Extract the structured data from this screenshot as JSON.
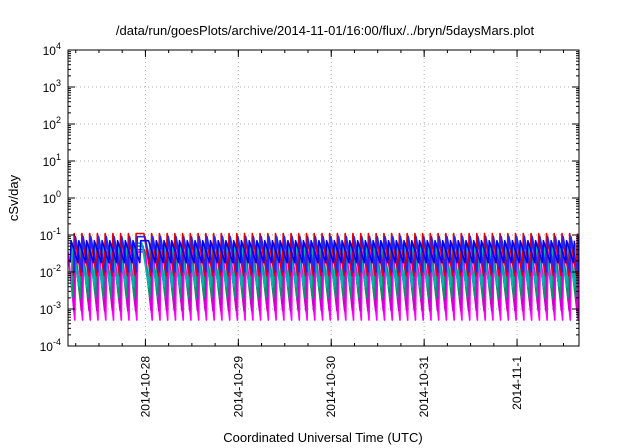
{
  "chart_data": {
    "type": "line",
    "title": "/data/run/goesPlots/archive/2014-11-01/16:00/flux/../bryn/5daysMars.plot",
    "xlabel": "Coordinated Universal Time (UTC)",
    "ylabel": "cSv/day",
    "yscale": "log",
    "ylim": [
      0.0001,
      10000
    ],
    "xlim": [
      "2014-10-27 04:00",
      "2014-11-01 16:00"
    ],
    "grid": true,
    "y_ticks": [
      {
        "base": "10",
        "exp": "-4",
        "value": 0.0001
      },
      {
        "base": "10",
        "exp": "-3",
        "value": 0.001
      },
      {
        "base": "10",
        "exp": "-2",
        "value": 0.01
      },
      {
        "base": "10",
        "exp": "-1",
        "value": 0.1
      },
      {
        "base": "10",
        "exp": "0",
        "value": 1
      },
      {
        "base": "10",
        "exp": "1",
        "value": 10
      },
      {
        "base": "10",
        "exp": "2",
        "value": 100
      },
      {
        "base": "10",
        "exp": "3",
        "value": 1000
      },
      {
        "base": "10",
        "exp": "4",
        "value": 10000
      }
    ],
    "x_ticks": [
      {
        "label": "2014-10-28",
        "value": "2014-10-28 00:00"
      },
      {
        "label": "2014-10-29",
        "value": "2014-10-29 00:00"
      },
      {
        "label": "2014-10-30",
        "value": "2014-10-30 00:00"
      },
      {
        "label": "2014-10-31",
        "value": "2014-10-31 00:00"
      },
      {
        "label": "2014-11-1",
        "value": "2014-11-01 00:00"
      }
    ],
    "sawtooth_period_hours": 2,
    "gap_period": [
      "2014-10-27 21:00",
      "2014-10-27 23:00"
    ],
    "series": [
      {
        "color": "#ff00ff",
        "peak": 0.035,
        "trough": 0.0005,
        "phase": 0.0
      },
      {
        "color": "#cc00cc",
        "peak": 0.04,
        "trough": 0.0009,
        "phase": 0.15
      },
      {
        "color": "#009966",
        "peak": 0.05,
        "trough": 0.002,
        "phase": 0.3
      },
      {
        "color": "#00b3b3",
        "peak": 0.06,
        "trough": 0.004,
        "phase": 0.45
      },
      {
        "color": "#e00000",
        "peak": 0.11,
        "trough": 0.008,
        "phase": 0.2
      },
      {
        "color": "#2222ff",
        "peak": 0.09,
        "trough": 0.01,
        "phase": 0.05
      },
      {
        "color": "#0000ee",
        "peak": 0.07,
        "trough": 0.018,
        "phase": 0.6
      }
    ]
  }
}
